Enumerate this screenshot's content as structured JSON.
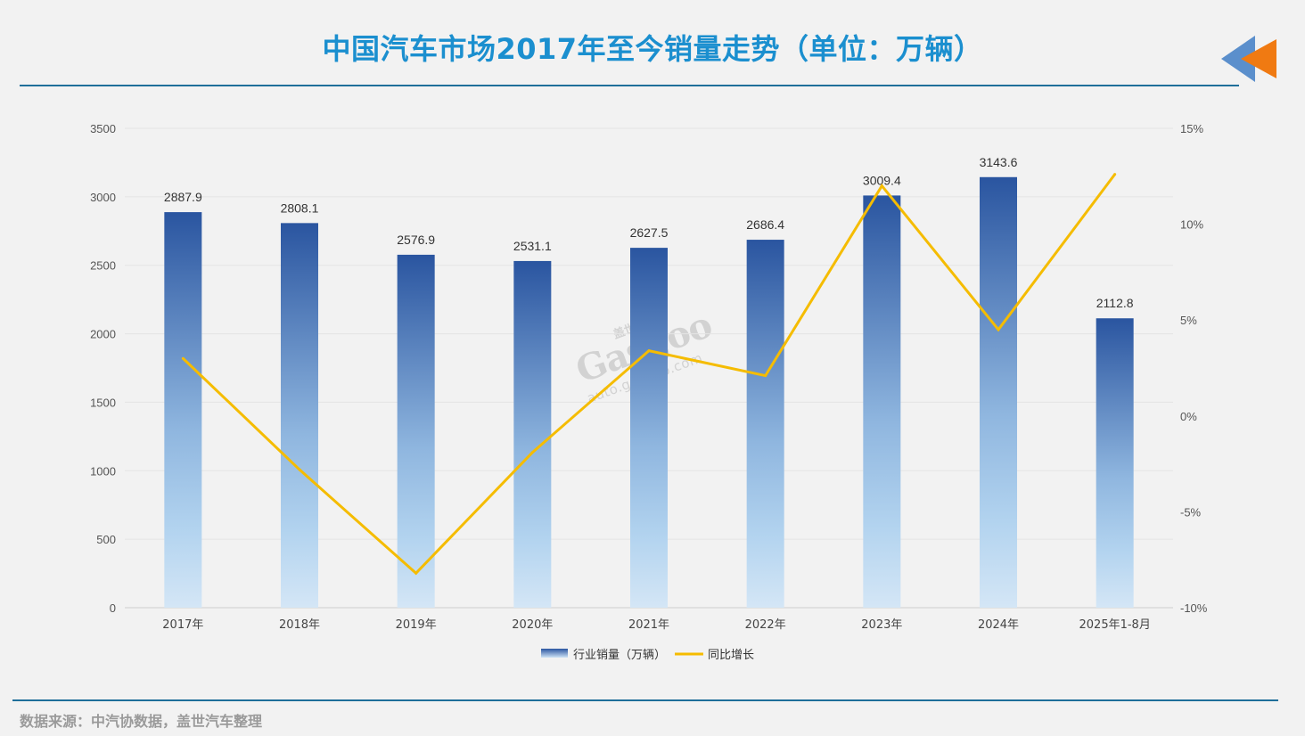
{
  "title": "中国汽车市场2017年至今销量走势（单位：万辆）",
  "footer": "数据来源：中汽协数据，盖世汽车整理",
  "watermark": {
    "brand": "Gasgoo",
    "cn": "盖世汽车",
    "url": "auto.gasgoo.com"
  },
  "colors": {
    "title": "#1b8fcf",
    "bar_top": "#2a55a0",
    "bar_bottom": "#cde2f5",
    "line": "#f5bc00",
    "rule": "#1f6f9a",
    "logo_blue": "#5b8fcc",
    "logo_orange": "#f07a12"
  },
  "chart_data": {
    "type": "bar+line",
    "categories": [
      "2017年",
      "2018年",
      "2019年",
      "2020年",
      "2021年",
      "2022年",
      "2023年",
      "2024年",
      "2025年1-8月"
    ],
    "series": [
      {
        "name": "行业销量（万辆）",
        "type": "bar",
        "axis": "left",
        "values": [
          2887.9,
          2808.1,
          2576.9,
          2531.1,
          2627.5,
          2686.4,
          3009.4,
          3143.6,
          2112.8
        ],
        "labels": [
          "2887.9",
          "2808.1",
          "2576.9",
          "2531.1",
          "2627.5",
          "2686.4",
          "3009.4",
          "3143.6",
          "2112.8"
        ]
      },
      {
        "name": "同比增长",
        "type": "line",
        "axis": "right",
        "values": [
          3.0,
          -2.8,
          -8.2,
          -1.9,
          3.4,
          2.1,
          12.0,
          4.5,
          12.6
        ]
      }
    ],
    "y_left": {
      "min": 0,
      "max": 3500,
      "ticks": [
        "0",
        "500",
        "1000",
        "1500",
        "2000",
        "2500",
        "3000",
        "3500"
      ]
    },
    "y_right": {
      "min": -10,
      "max": 15,
      "ticks": [
        "-10%",
        "-5%",
        "0%",
        "5%",
        "10%",
        "15%"
      ]
    },
    "grid": true,
    "legend": {
      "position": "bottom-center",
      "items": [
        "行业销量（万辆）",
        "同比增长"
      ]
    }
  }
}
